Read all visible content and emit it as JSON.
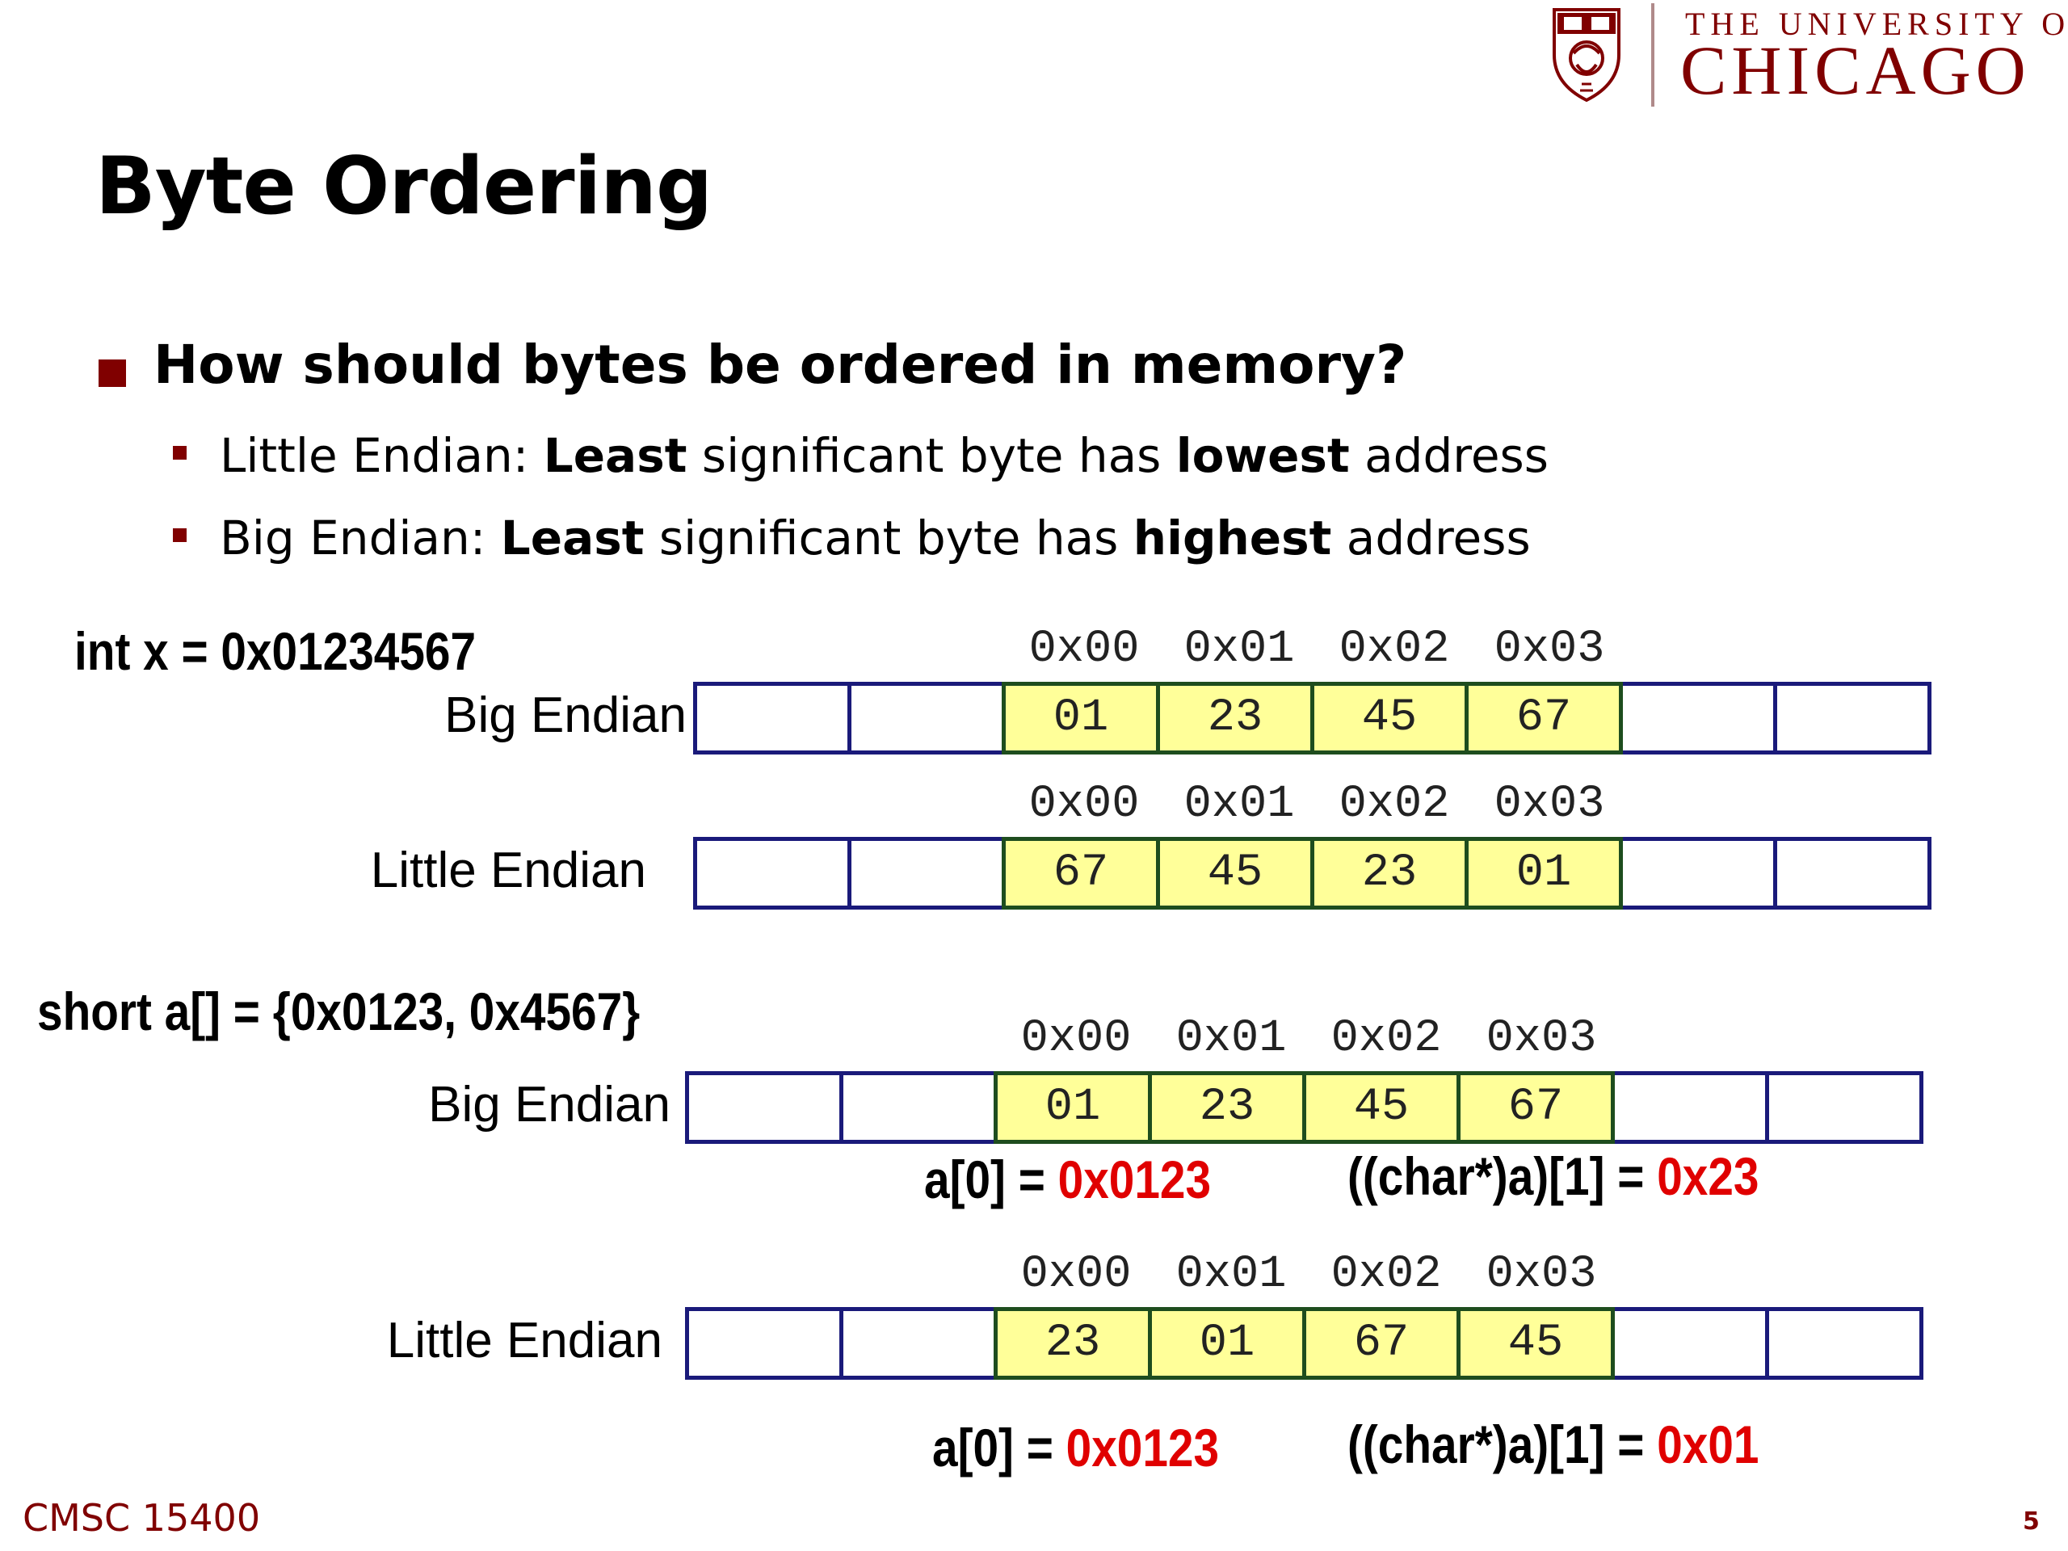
{
  "logo": {
    "line1": "THE UNIVERSITY OF",
    "line2": "CHICAGO"
  },
  "title": "Byte Ordering",
  "question": "How should bytes be ordered in memory?",
  "bullets": [
    {
      "prefix": "Little Endian: ",
      "b1": "Least",
      "mid": " significant byte has ",
      "b2": "lowest",
      "suffix": " address"
    },
    {
      "prefix": "Big Endian: ",
      "b1": "Least",
      "mid": " significant byte has ",
      "b2": "highest",
      "suffix": " address"
    }
  ],
  "addresses": [
    "0x00",
    "0x01",
    "0x02",
    "0x03"
  ],
  "int_example": {
    "declaration": "int x = 0x01234567",
    "big": {
      "label": "Big Endian",
      "bytes": [
        "01",
        "23",
        "45",
        "67"
      ]
    },
    "little": {
      "label": "Little Endian",
      "bytes": [
        "67",
        "45",
        "23",
        "01"
      ]
    }
  },
  "short_example": {
    "declaration": "short a[] = {0x0123, 0x4567}",
    "big": {
      "label": "Big Endian",
      "bytes": [
        "01",
        "23",
        "45",
        "67"
      ],
      "eq1": {
        "expr": "a[0] = ",
        "value": "0x0123"
      },
      "eq2": {
        "expr": "((char*)a)[1] = ",
        "value": "0x23"
      }
    },
    "little": {
      "label": "Little Endian",
      "bytes": [
        "23",
        "01",
        "67",
        "45"
      ],
      "eq1": {
        "expr": "a[0] = ",
        "value": "0x0123"
      },
      "eq2": {
        "expr": "((char*)a)[1] = ",
        "value": "0x01"
      }
    }
  },
  "footer": {
    "course": "CMSC 15400",
    "page": "5"
  },
  "colors": {
    "maroon": "#800000",
    "cell_fill": "#ffff99",
    "highlight": "#e00000"
  }
}
